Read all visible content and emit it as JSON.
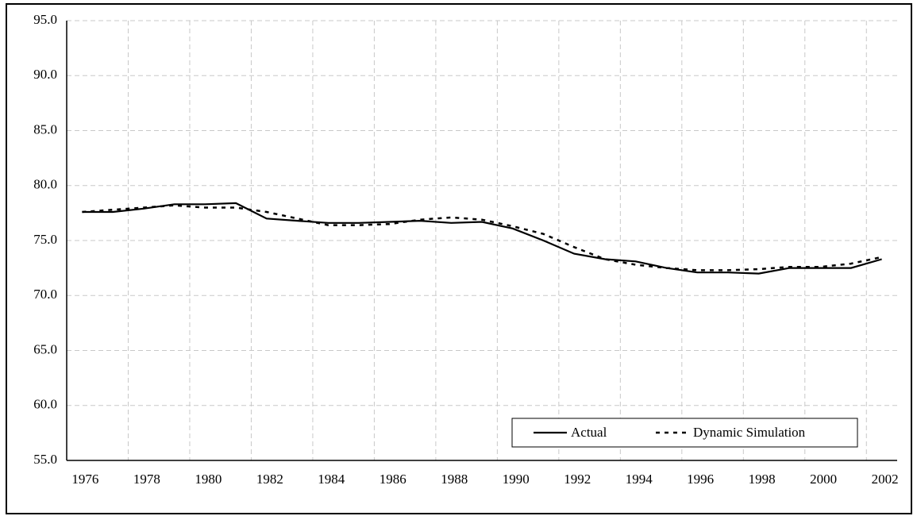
{
  "chart_data": {
    "type": "line",
    "categories": [
      "1976",
      null,
      "1978",
      null,
      "1980",
      null,
      "1982",
      null,
      "1984",
      null,
      "1986",
      null,
      "1988",
      null,
      "1990",
      null,
      "1992",
      null,
      "1994",
      null,
      "1996",
      null,
      "1998",
      null,
      "2000",
      null,
      "2002"
    ],
    "series": [
      {
        "name": "Actual",
        "color": "#000000",
        "dash": "solid",
        "values": [
          77.6,
          77.6,
          77.9,
          78.3,
          78.3,
          78.4,
          77.0,
          76.8,
          76.6,
          76.6,
          76.7,
          76.8,
          76.6,
          76.7,
          76.1,
          75.0,
          73.8,
          73.3,
          73.1,
          72.5,
          72.1,
          72.1,
          72.0,
          72.5,
          72.5,
          72.5,
          73.3
        ]
      },
      {
        "name": "Dynamic Simulation",
        "color": "#000000",
        "dash": "dotted",
        "values": [
          77.6,
          77.8,
          78.0,
          78.2,
          78.0,
          78.0,
          77.6,
          77.0,
          76.4,
          76.4,
          76.5,
          76.9,
          77.1,
          76.9,
          76.3,
          75.6,
          74.4,
          73.3,
          72.8,
          72.5,
          72.3,
          72.3,
          72.4,
          72.6,
          72.6,
          72.9,
          73.5
        ]
      }
    ],
    "ylim": [
      55,
      95
    ],
    "yticks": [
      {
        "value": 55,
        "label": "55.0"
      },
      {
        "value": 60,
        "label": "60.0"
      },
      {
        "value": 65,
        "label": "65.0"
      },
      {
        "value": 70,
        "label": "70.0"
      },
      {
        "value": 75,
        "label": "75.0"
      },
      {
        "value": 80,
        "label": "80.0"
      },
      {
        "value": 85,
        "label": "85.0"
      },
      {
        "value": 90,
        "label": "90.0"
      },
      {
        "value": 95,
        "label": "95.0"
      }
    ],
    "grid": true,
    "legend": "lower right"
  }
}
